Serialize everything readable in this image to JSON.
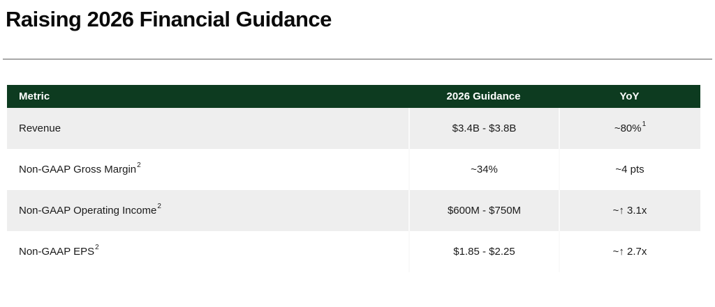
{
  "page": {
    "title": "Raising 2026 Financial Guidance"
  },
  "colors": {
    "header_bg": "#0d3b20",
    "header_text": "#ffffff",
    "row_alt_bg": "#eeeeee",
    "row_bg": "#ffffff",
    "rule": "#a8a8a8",
    "body_text": "#1a1a1a"
  },
  "table": {
    "headers": {
      "metric": "Metric",
      "guidance": "2026 Guidance",
      "yoy": "YoY"
    },
    "rows": [
      {
        "metric": "Revenue",
        "metric_sup": "",
        "guidance": "$3.4B - $3.8B",
        "yoy": "~80%",
        "yoy_sup": "1"
      },
      {
        "metric": "Non-GAAP Gross Margin",
        "metric_sup": "2",
        "guidance": "~34%",
        "yoy": "~4 pts",
        "yoy_sup": ""
      },
      {
        "metric": "Non-GAAP Operating Income",
        "metric_sup": "2",
        "guidance": "$600M - $750M",
        "yoy": "~↑ 3.1x",
        "yoy_sup": ""
      },
      {
        "metric": "Non-GAAP EPS",
        "metric_sup": "2",
        "guidance": "$1.85 - $2.25",
        "yoy": "~↑ 2.7x",
        "yoy_sup": ""
      }
    ]
  },
  "chart_data": {
    "type": "table",
    "title": "Raising 2026 Financial Guidance",
    "columns": [
      "Metric",
      "2026 Guidance",
      "YoY"
    ],
    "rows": [
      [
        "Revenue",
        "$3.4B - $3.8B",
        "~80%"
      ],
      [
        "Non-GAAP Gross Margin",
        "~34%",
        "~4 pts"
      ],
      [
        "Non-GAAP Operating Income",
        "$600M - $750M",
        "~up 3.1x"
      ],
      [
        "Non-GAAP EPS",
        "$1.85 - $2.25",
        "~up 2.7x"
      ]
    ]
  }
}
